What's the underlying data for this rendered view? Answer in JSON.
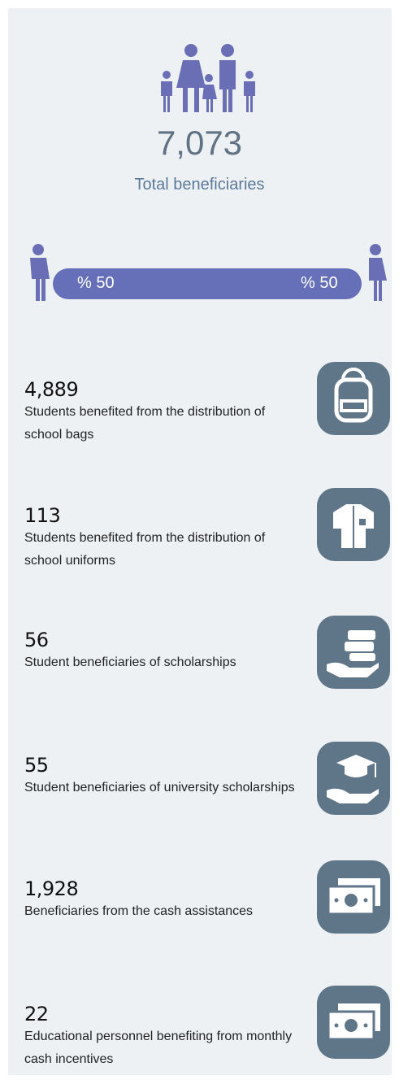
{
  "header": {
    "total": "7,073",
    "label": "Total beneficiaries"
  },
  "gender": {
    "male": "% 50",
    "female": "% 50"
  },
  "items": [
    {
      "value": "4,889",
      "label": "Students benefited from the distribution of school bags"
    },
    {
      "value": "113",
      "label": "Students benefited from the distribution of school uniforms"
    },
    {
      "value": "56",
      "label": "Student beneficiaries of scholarships"
    },
    {
      "value": "55",
      "label": "Student beneficiaries of university scholarships"
    },
    {
      "value": "1,928",
      "label": "Beneficiaries from the cash assistances"
    },
    {
      "value": "22",
      "label": "Educational personnel benefiting from monthly cash incentives"
    }
  ]
}
